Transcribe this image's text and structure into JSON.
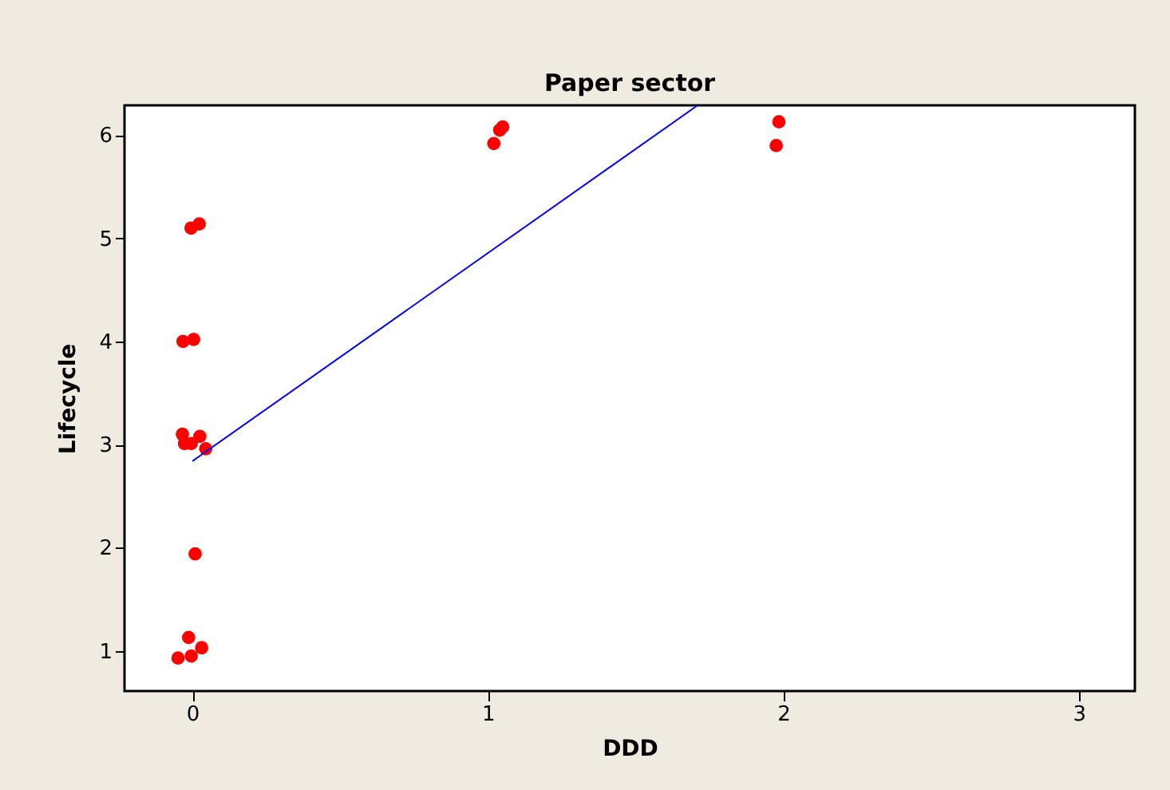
{
  "chart_data": {
    "type": "scatter",
    "title": "Paper sector",
    "xlabel": "DDD",
    "ylabel": "Lifecycle",
    "xlim": [
      -0.23,
      3.19
    ],
    "ylim": [
      0.61,
      6.29
    ],
    "xticks": [
      0,
      1,
      2,
      3
    ],
    "yticks": [
      1,
      2,
      3,
      4,
      5,
      6
    ],
    "grid": false,
    "series": [
      {
        "color": "#ff0000",
        "marker": "circle",
        "x": [
          -0.005,
          0.023,
          -0.032,
          0.004,
          -0.034,
          -0.027,
          -0.004,
          0.025,
          0.045,
          0.009,
          -0.013,
          -0.049,
          -0.004,
          0.031,
          1.02,
          1.04,
          1.05,
          1.985,
          1.976
        ],
        "values": [
          5.1,
          5.14,
          4.0,
          4.02,
          3.1,
          3.01,
          3.01,
          3.08,
          2.96,
          1.94,
          1.13,
          0.93,
          0.95,
          1.03,
          5.92,
          6.05,
          6.08,
          6.13,
          5.9
        ]
      },
      {
        "type": "line",
        "color": "#0000ff",
        "x": [
          0.0,
          1.71
        ],
        "values": [
          2.84,
          6.29
        ]
      }
    ]
  }
}
